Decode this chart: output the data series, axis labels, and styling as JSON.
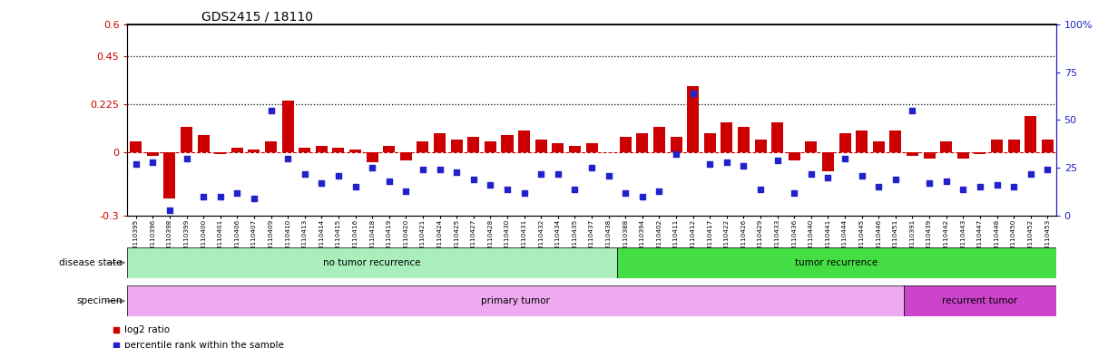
{
  "title": "GDS2415 / 18110",
  "categories": [
    "GSM110395",
    "GSM110396",
    "GSM110398",
    "GSM110399",
    "GSM110400",
    "GSM110401",
    "GSM110406",
    "GSM110407",
    "GSM110409",
    "GSM110410",
    "GSM110413",
    "GSM110414",
    "GSM110415",
    "GSM110416",
    "GSM110418",
    "GSM110419",
    "GSM110420",
    "GSM110421",
    "GSM110424",
    "GSM110425",
    "GSM110427",
    "GSM110428",
    "GSM110430",
    "GSM110431",
    "GSM110432",
    "GSM110434",
    "GSM110435",
    "GSM110437",
    "GSM110438",
    "GSM110388",
    "GSM110394",
    "GSM110402",
    "GSM110411",
    "GSM110412",
    "GSM110417",
    "GSM110422",
    "GSM110426",
    "GSM110429",
    "GSM110433",
    "GSM110436",
    "GSM110440",
    "GSM110441",
    "GSM110444",
    "GSM110445",
    "GSM110446",
    "GSM110451",
    "GSM110391",
    "GSM110439",
    "GSM110442",
    "GSM110443",
    "GSM110447",
    "GSM110448",
    "GSM110450",
    "GSM110452",
    "GSM110453"
  ],
  "log2_ratio": [
    0.05,
    -0.02,
    -0.22,
    0.12,
    0.08,
    -0.01,
    0.02,
    0.01,
    0.05,
    0.24,
    0.02,
    0.03,
    0.02,
    0.01,
    -0.05,
    0.03,
    -0.04,
    0.05,
    0.09,
    0.06,
    0.07,
    0.05,
    0.08,
    0.1,
    0.06,
    0.04,
    0.03,
    0.04,
    0.0,
    0.07,
    0.09,
    0.12,
    0.07,
    0.31,
    0.09,
    0.14,
    0.12,
    0.06,
    0.14,
    -0.04,
    0.05,
    -0.09,
    0.09,
    0.1,
    0.05,
    0.1,
    -0.02,
    -0.03,
    0.05,
    -0.03,
    -0.01,
    0.06,
    0.06,
    0.17,
    0.06
  ],
  "percentile": [
    27,
    28,
    3,
    30,
    10,
    10,
    12,
    9,
    55,
    30,
    22,
    17,
    21,
    15,
    25,
    18,
    13,
    24,
    24,
    23,
    19,
    16,
    14,
    12,
    22,
    22,
    14,
    25,
    21,
    12,
    10,
    13,
    32,
    64,
    27,
    28,
    26,
    14,
    29,
    12,
    22,
    20,
    30,
    21,
    15,
    19,
    55,
    17,
    18,
    14,
    15,
    16,
    15,
    22,
    24
  ],
  "no_recurrence_count": 29,
  "recurrence_count": 17,
  "recurrent_tumor_count": 9,
  "bar_color": "#cc0000",
  "dot_color": "#2222cc",
  "hline_color": "#cc0000",
  "ylim_left": [
    -0.3,
    0.6
  ],
  "ylim_right": [
    0,
    100
  ],
  "yticks_left": [
    -0.3,
    0.0,
    0.225,
    0.45,
    0.6
  ],
  "ytick_labels_left": [
    "-0.3",
    "0",
    "0.225",
    "0.45",
    "0.6"
  ],
  "yticks_right": [
    0,
    25,
    50,
    75,
    100
  ],
  "ytick_labels_right": [
    "0",
    "25",
    "50",
    "75",
    "100%"
  ],
  "hlines": [
    0.225,
    0.45
  ],
  "disease_state_labels": [
    "no tumor recurrence",
    "tumor recurrence"
  ],
  "disease_state_colors": [
    "#aaeebb",
    "#44dd44"
  ],
  "specimen_labels": [
    "primary tumor",
    "recurrent tumor"
  ],
  "specimen_colors": [
    "#eeaaee",
    "#cc44cc"
  ],
  "legend_items": [
    "log2 ratio",
    "percentile rank within the sample"
  ]
}
